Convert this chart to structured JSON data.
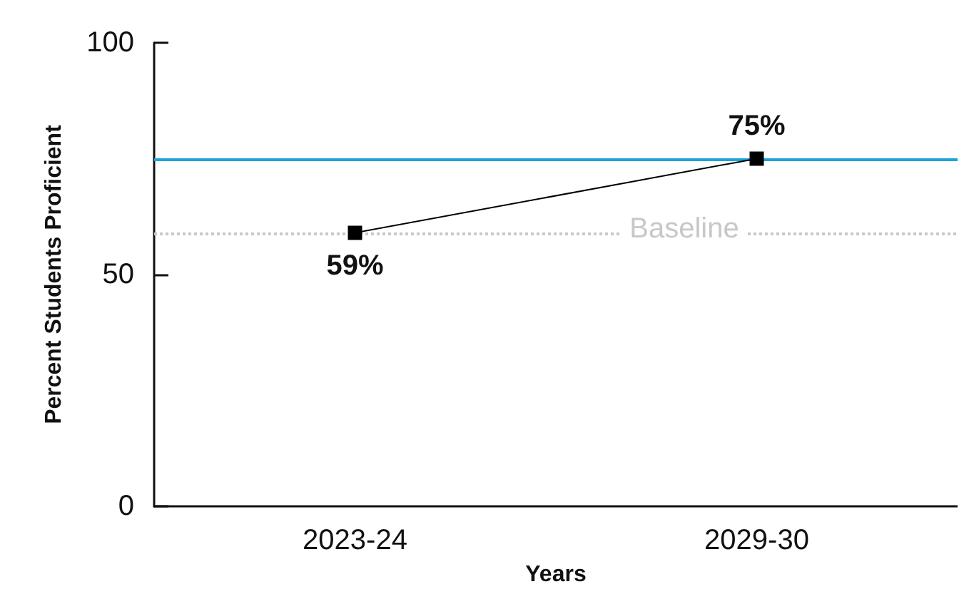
{
  "chart_data": {
    "type": "line",
    "xlabel": "Years",
    "ylabel": "Percent Students Proficient",
    "categories": [
      "2023-24",
      "2029-30"
    ],
    "series": [
      {
        "color": "#000000",
        "values": [
          59,
          75
        ],
        "value_labels": [
          "59%",
          "75%"
        ]
      }
    ],
    "ylim": [
      0,
      100
    ],
    "yticks": [
      0,
      50,
      100
    ],
    "grid": false,
    "marker": "square",
    "line_style": "solid",
    "ref_lines": [
      {
        "axis": "y",
        "value": 75,
        "label": null,
        "color": "#1aa3dd",
        "line_style": "solid"
      },
      {
        "axis": "y",
        "value": 59,
        "label": "Baseline",
        "color": "#c8c8c8",
        "line_style": "dotted"
      }
    ]
  }
}
